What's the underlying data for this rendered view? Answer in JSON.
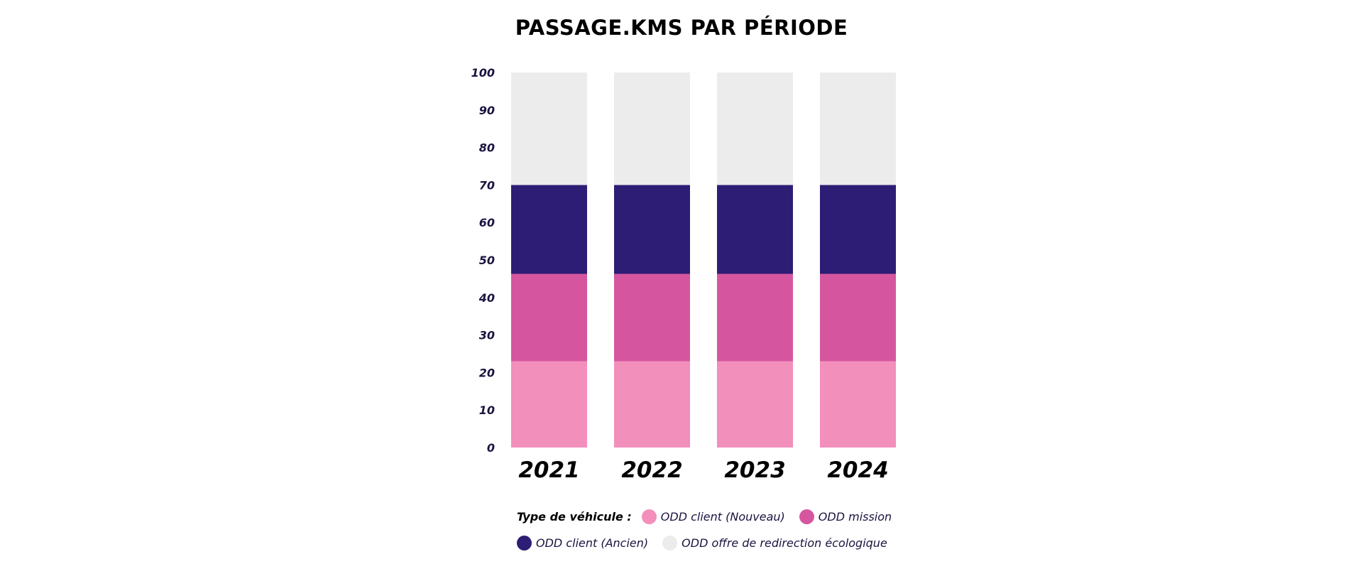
{
  "chart_data": {
    "type": "bar",
    "stacked": true,
    "title": "PASSAGE.KMS PAR PÉRIODE",
    "categories": [
      "2021",
      "2022",
      "2023",
      "2024"
    ],
    "ylim": [
      0,
      100
    ],
    "yticks": [
      0,
      10,
      20,
      30,
      40,
      50,
      60,
      70,
      80,
      90,
      100
    ],
    "grid": false,
    "legend": {
      "placement": "bottom",
      "title": "Type de véhicule :"
    },
    "series": [
      {
        "name": "ODD client (Nouveau)",
        "color": "#f28fba",
        "values": [
          23,
          23,
          23,
          23
        ]
      },
      {
        "name": "ODD mission",
        "color": "#d5569f",
        "values": [
          23.3,
          23.3,
          23.3,
          23.3
        ]
      },
      {
        "name": "ODD client (Ancien)",
        "color": "#2d1d74",
        "values": [
          23.7,
          23.7,
          23.7,
          23.7
        ]
      },
      {
        "name": "ODD offre de redirection écologique",
        "color": "#ececec",
        "values": [
          30,
          30,
          30,
          30
        ]
      }
    ]
  }
}
